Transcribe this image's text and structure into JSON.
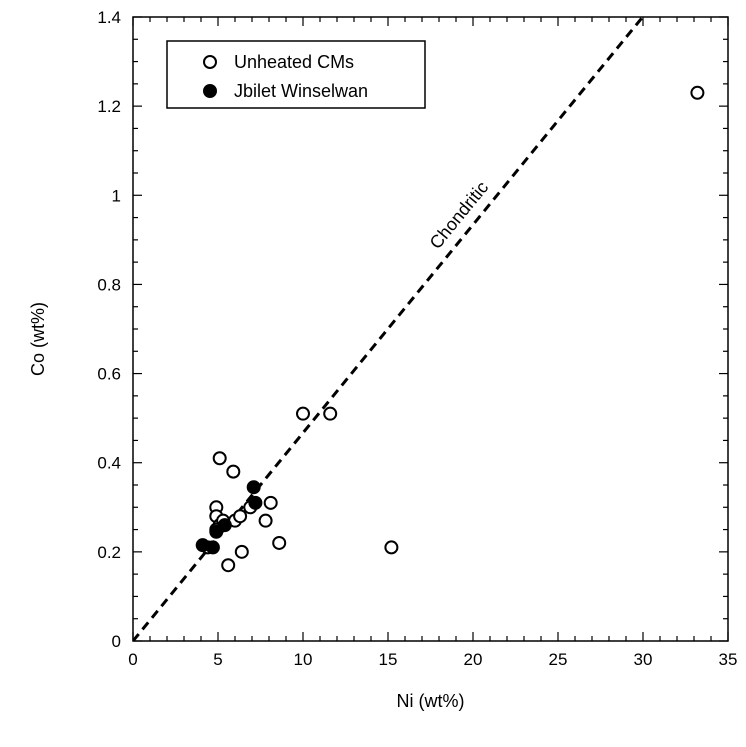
{
  "chart_data": {
    "type": "scatter",
    "xlabel": "Ni (wt%)",
    "ylabel": "Co (wt%)",
    "xlim": [
      0,
      35
    ],
    "ylim": [
      0,
      1.4
    ],
    "xticks": [
      0,
      5,
      10,
      15,
      20,
      25,
      30,
      35
    ],
    "yticks": [
      0,
      0.2,
      0.4,
      0.6,
      0.8,
      1,
      1.2,
      1.4
    ],
    "xtick_labels": [
      "0",
      "5",
      "10",
      "15",
      "20",
      "25",
      "30",
      "35"
    ],
    "ytick_labels": [
      "0",
      "0.2",
      "0.4",
      "0.6",
      "0.8",
      "1",
      "1.2",
      "1.4"
    ],
    "grid": false,
    "legend_position": "top-left",
    "series": [
      {
        "name": "Unheated CMs",
        "marker": "open-circle",
        "color": "#000000",
        "points": [
          {
            "x": 33.2,
            "y": 1.23
          },
          {
            "x": 10.0,
            "y": 0.51
          },
          {
            "x": 11.6,
            "y": 0.51
          },
          {
            "x": 5.1,
            "y": 0.41
          },
          {
            "x": 5.9,
            "y": 0.38
          },
          {
            "x": 8.1,
            "y": 0.31
          },
          {
            "x": 7.8,
            "y": 0.27
          },
          {
            "x": 8.6,
            "y": 0.22
          },
          {
            "x": 15.2,
            "y": 0.21
          },
          {
            "x": 4.9,
            "y": 0.3
          },
          {
            "x": 4.9,
            "y": 0.28
          },
          {
            "x": 5.1,
            "y": 0.26
          },
          {
            "x": 5.3,
            "y": 0.27
          },
          {
            "x": 6.0,
            "y": 0.27
          },
          {
            "x": 6.3,
            "y": 0.28
          },
          {
            "x": 6.9,
            "y": 0.3
          },
          {
            "x": 4.9,
            "y": 0.25
          },
          {
            "x": 4.4,
            "y": 0.21
          },
          {
            "x": 6.4,
            "y": 0.2
          },
          {
            "x": 5.6,
            "y": 0.17
          }
        ]
      },
      {
        "name": "Jbilet Winselwan",
        "marker": "filled-circle",
        "color": "#000000",
        "points": [
          {
            "x": 7.1,
            "y": 0.345
          },
          {
            "x": 7.2,
            "y": 0.31
          },
          {
            "x": 5.4,
            "y": 0.26
          },
          {
            "x": 4.9,
            "y": 0.245
          },
          {
            "x": 4.1,
            "y": 0.215
          },
          {
            "x": 4.7,
            "y": 0.21
          }
        ]
      }
    ],
    "reference_line": {
      "label": "Chondritic",
      "style": "dashed",
      "slope": 0.0467,
      "intercept": 0
    }
  }
}
